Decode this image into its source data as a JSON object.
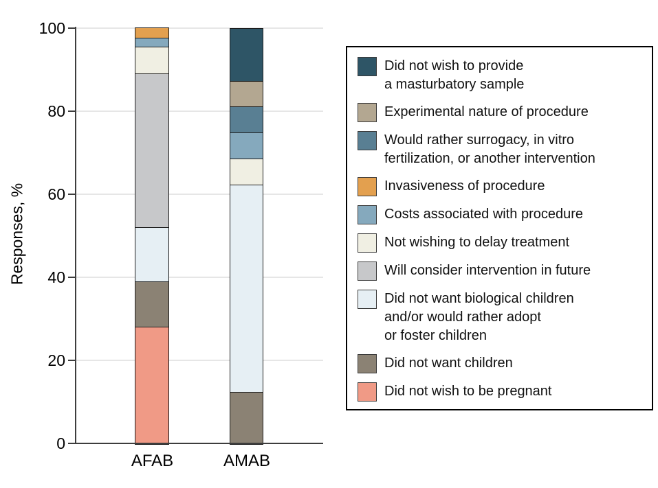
{
  "figure": {
    "background": "#ffffff",
    "ylabel": "Responses, %"
  },
  "chart_data": {
    "type": "bar",
    "stacked": true,
    "title": "",
    "xlabel": "",
    "ylabel": "Responses, %",
    "categories": [
      "AFAB",
      "AMAB"
    ],
    "ylim": [
      0,
      100
    ],
    "yticks": [
      0,
      20,
      40,
      60,
      80,
      100
    ],
    "grid": "horizontal",
    "legend_position": "right",
    "stacking": "reverse-legend-order-bottom-up-zeros-omitted",
    "series": [
      {
        "name": "Did not wish to provide a masturbatory sample",
        "label_lines": [
          "Did not wish to provide",
          "a masturbatory sample"
        ],
        "color": "#2e5566",
        "values": [
          0,
          12.5
        ]
      },
      {
        "name": "Experimental nature of procedure",
        "label_lines": [
          "Experimental nature of procedure"
        ],
        "color": "#b3a791",
        "values": [
          0,
          6.25
        ]
      },
      {
        "name": "Would rather surrogacy, in vitro fertilization, or another intervention",
        "label_lines": [
          "Would rather surrogacy, in vitro",
          "fertilization, or another intervention"
        ],
        "color": "#597f93",
        "values": [
          0,
          6.25
        ]
      },
      {
        "name": "Invasiveness of procedure",
        "label_lines": [
          "Invasiveness of procedure"
        ],
        "color": "#e3a04f",
        "values": [
          2.2,
          0
        ]
      },
      {
        "name": "Costs associated with procedure",
        "label_lines": [
          "Costs associated with procedure"
        ],
        "color": "#85a9bd",
        "values": [
          2.2,
          6.25
        ]
      },
      {
        "name": "Not wishing to delay treatment",
        "label_lines": [
          "Not wishing to delay treatment"
        ],
        "color": "#f0efe3",
        "values": [
          6.5,
          6.25
        ]
      },
      {
        "name": "Will consider intervention in future",
        "label_lines": [
          "Will consider intervention in future"
        ],
        "color": "#c7c8ca",
        "values": [
          37.0,
          0
        ]
      },
      {
        "name": "Did not want biological children and/or would rather adopt or foster children",
        "label_lines": [
          "Did not want biological children",
          "and/or would rather adopt",
          "or foster children"
        ],
        "color": "#e6eff4",
        "values": [
          13.0,
          50.0
        ]
      },
      {
        "name": "Did not want children",
        "label_lines": [
          "Did not want children"
        ],
        "color": "#8b8274",
        "values": [
          10.9,
          12.5
        ]
      },
      {
        "name": "Did not wish to be pregnant",
        "label_lines": [
          "Did not wish to be pregnant"
        ],
        "color": "#f09a86",
        "values": [
          28.3,
          0
        ]
      }
    ]
  }
}
